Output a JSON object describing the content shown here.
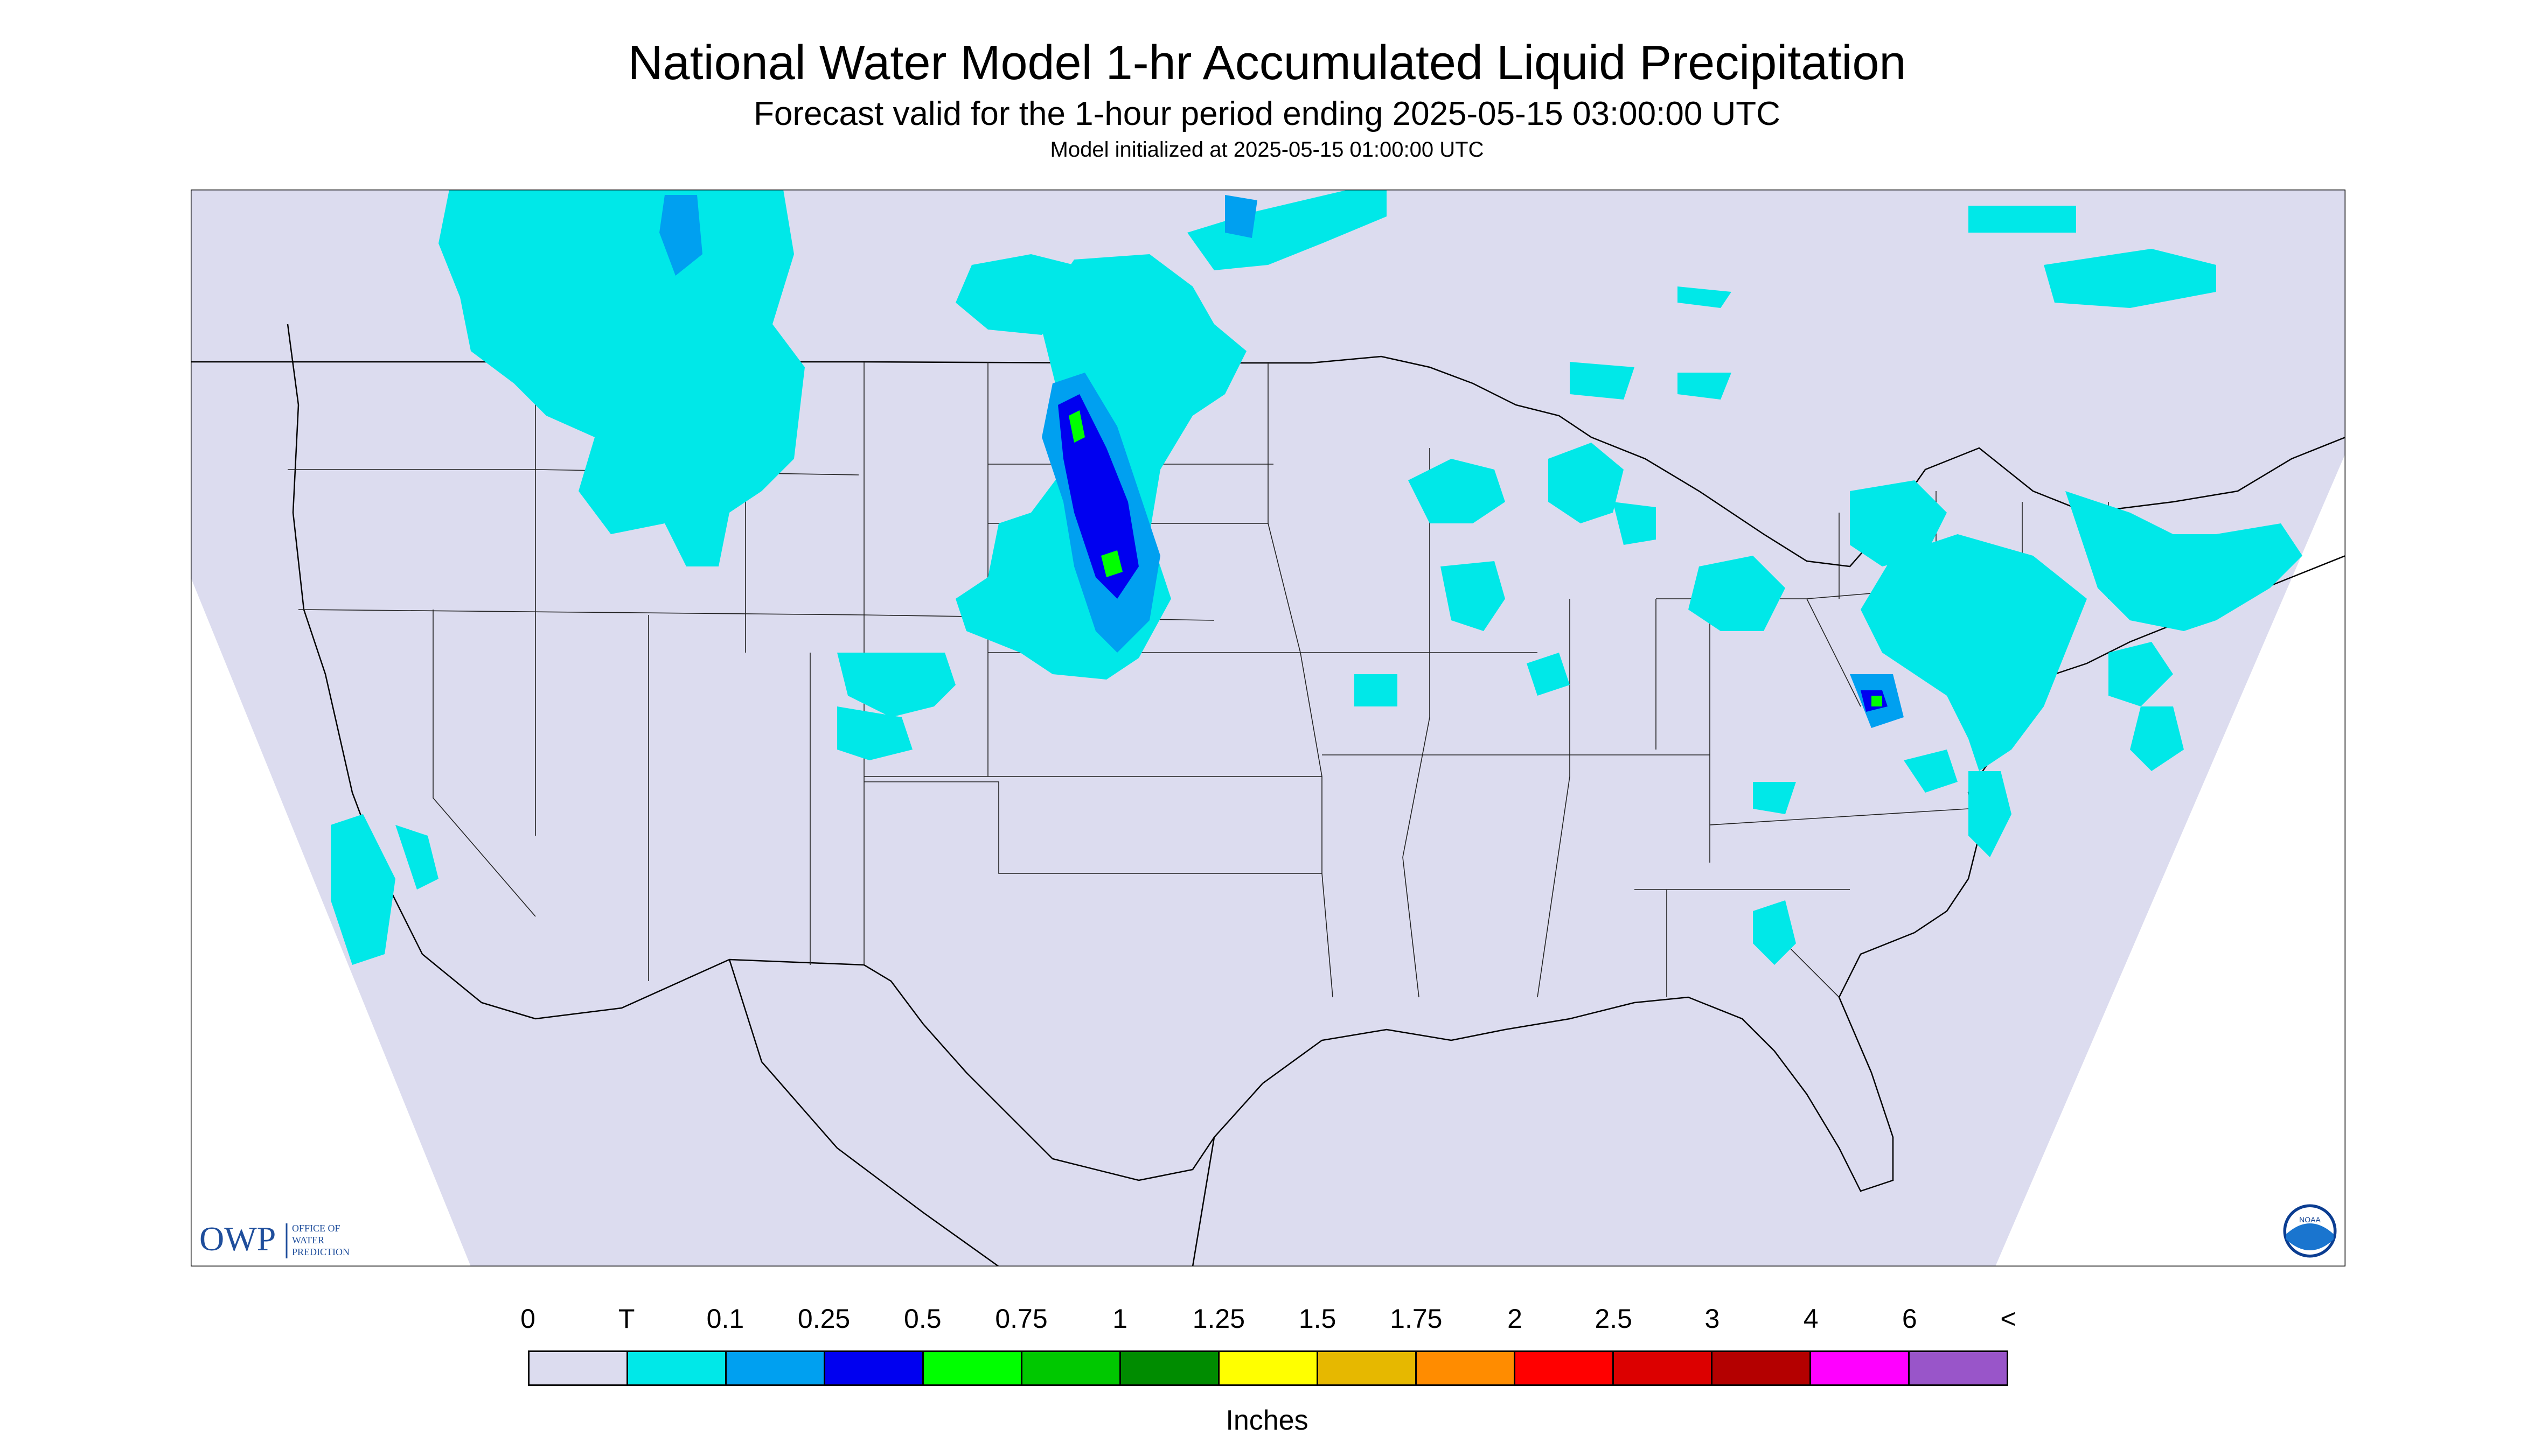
{
  "header": {
    "title": "National Water Model 1-hr Accumulated Liquid Precipitation",
    "subtitle": "Forecast valid for the 1-hour period ending 2025-05-15 03:00:00 UTC",
    "init": "Model initialized at 2025-05-15 01:00:00 UTC"
  },
  "map": {
    "background_color": "#dcdcef",
    "outside_domain_color": "#ffffff",
    "region": "Contiguous United States"
  },
  "logos": {
    "owp_mark": "OWP",
    "owp_text": [
      "OFFICE OF",
      "WATER",
      "PREDICTION"
    ],
    "noaa_mark": "NOAA"
  },
  "legend": {
    "tick_labels": [
      "0",
      "T",
      "0.1",
      "0.25",
      "0.5",
      "0.75",
      "1",
      "1.25",
      "1.5",
      "1.75",
      "2",
      "2.5",
      "3",
      "4",
      "6",
      "<"
    ],
    "colors": [
      "#dcdcef",
      "#00e8e8",
      "#00a0f0",
      "#0000f0",
      "#00ff00",
      "#00c800",
      "#008c00",
      "#ffff00",
      "#e6b800",
      "#ff8c00",
      "#ff0000",
      "#dc0000",
      "#b40000",
      "#ff00ff",
      "#9955c9"
    ],
    "units": "Inches"
  },
  "chart_data": {
    "type": "heatmap",
    "title": "National Water Model 1-hr Accumulated Liquid Precipitation",
    "colorbar": {
      "boundaries": [
        "0",
        "T",
        "0.1",
        "0.25",
        "0.5",
        "0.75",
        "1",
        "1.25",
        "1.5",
        "1.75",
        "2",
        "2.5",
        "3",
        "4",
        "6",
        "<"
      ],
      "units": "Inches"
    }
  }
}
